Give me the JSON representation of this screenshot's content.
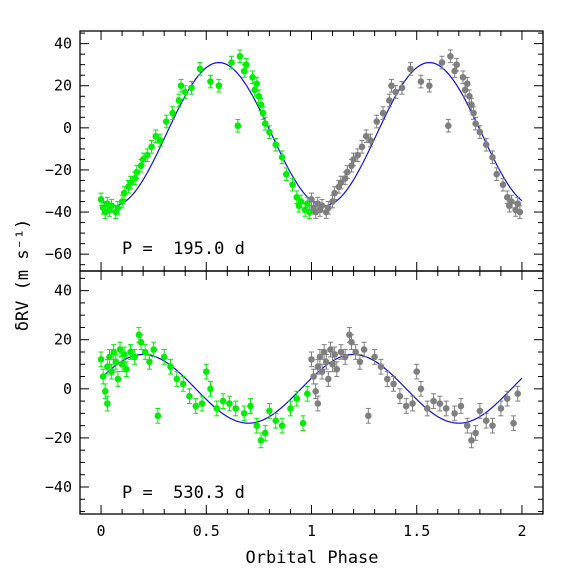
{
  "colors": {
    "first_cycle": "#00ee00",
    "second_cycle": "#7f7f7f",
    "model": "#1010d0",
    "frame": "#000000"
  },
  "chart_data": {
    "type": "scatter",
    "xlabel": "Orbital Phase",
    "ylabel": "δRV (m s⁻¹)",
    "xlim": [
      -0.1,
      2.1
    ],
    "x_ticks": [
      "0",
      "0.5",
      "1",
      "1.5",
      "2"
    ],
    "grid": false,
    "legend": "none",
    "panels": [
      {
        "name": "top",
        "annotation": "P =  195.0 d",
        "ylim": [
          -68,
          46
        ],
        "y_ticks": [
          "40",
          "20",
          "0",
          "−20",
          "−40",
          "−60"
        ],
        "model": {
          "amplitude": 34,
          "offset": -3,
          "peak_phase": 0.56
        },
        "points": [
          [
            0.0,
            -34,
            3
          ],
          [
            0.01,
            -38,
            3
          ],
          [
            0.02,
            -40,
            3
          ],
          [
            0.03,
            -36,
            3
          ],
          [
            0.04,
            -39,
            3
          ],
          [
            0.05,
            -37,
            3
          ],
          [
            0.07,
            -40,
            3
          ],
          [
            0.08,
            -38,
            3
          ],
          [
            0.1,
            -35,
            3
          ],
          [
            0.11,
            -31,
            3
          ],
          [
            0.13,
            -28,
            3
          ],
          [
            0.14,
            -26,
            3
          ],
          [
            0.16,
            -24,
            3
          ],
          [
            0.17,
            -21,
            3
          ],
          [
            0.19,
            -18,
            3
          ],
          [
            0.2,
            -15,
            3
          ],
          [
            0.22,
            -13,
            3
          ],
          [
            0.24,
            -9,
            3
          ],
          [
            0.26,
            -4,
            3
          ],
          [
            0.28,
            -6,
            3
          ],
          [
            0.31,
            3,
            3
          ],
          [
            0.34,
            7,
            3
          ],
          [
            0.37,
            13,
            3
          ],
          [
            0.38,
            20,
            3
          ],
          [
            0.4,
            17,
            3
          ],
          [
            0.43,
            19,
            3
          ],
          [
            0.47,
            28,
            3
          ],
          [
            0.52,
            22,
            3
          ],
          [
            0.56,
            20,
            3
          ],
          [
            0.62,
            31,
            3
          ],
          [
            0.66,
            34,
            3
          ],
          [
            0.68,
            27,
            3
          ],
          [
            0.69,
            30,
            3
          ],
          [
            0.72,
            24,
            3
          ],
          [
            0.73,
            18,
            3
          ],
          [
            0.74,
            21,
            3
          ],
          [
            0.75,
            15,
            3
          ],
          [
            0.76,
            11,
            3
          ],
          [
            0.77,
            7,
            3
          ],
          [
            0.78,
            2,
            3
          ],
          [
            0.65,
            1,
            3
          ],
          [
            0.8,
            -2,
            3
          ],
          [
            0.83,
            -8,
            3
          ],
          [
            0.86,
            -14,
            3
          ],
          [
            0.88,
            -22,
            3
          ],
          [
            0.91,
            -27,
            3
          ],
          [
            0.93,
            -33,
            3
          ],
          [
            0.94,
            -37,
            3
          ],
          [
            0.95,
            -35,
            3
          ],
          [
            0.97,
            -39,
            3
          ],
          [
            0.98,
            -36,
            3
          ],
          [
            0.99,
            -40,
            3
          ]
        ],
        "points_repeat": [
          [
            1.0,
            -34,
            3
          ],
          [
            1.01,
            -38,
            3
          ],
          [
            1.02,
            -40,
            3
          ],
          [
            1.03,
            -36,
            3
          ],
          [
            1.04,
            -39,
            3
          ],
          [
            1.05,
            -37,
            3
          ],
          [
            1.07,
            -40,
            3
          ],
          [
            1.08,
            -38,
            3
          ],
          [
            1.1,
            -35,
            3
          ],
          [
            1.11,
            -31,
            3
          ],
          [
            1.13,
            -28,
            3
          ],
          [
            1.14,
            -26,
            3
          ],
          [
            1.16,
            -24,
            3
          ],
          [
            1.17,
            -21,
            3
          ],
          [
            1.19,
            -18,
            3
          ],
          [
            1.2,
            -15,
            3
          ],
          [
            1.22,
            -13,
            3
          ],
          [
            1.24,
            -9,
            3
          ],
          [
            1.26,
            -4,
            3
          ],
          [
            1.28,
            -6,
            3
          ],
          [
            1.31,
            3,
            3
          ],
          [
            1.34,
            7,
            3
          ],
          [
            1.37,
            13,
            3
          ],
          [
            1.38,
            20,
            3
          ],
          [
            1.4,
            17,
            3
          ],
          [
            1.43,
            19,
            3
          ],
          [
            1.47,
            28,
            3
          ],
          [
            1.52,
            22,
            3
          ],
          [
            1.56,
            20,
            3
          ],
          [
            1.62,
            31,
            3
          ],
          [
            1.66,
            34,
            3
          ],
          [
            1.68,
            27,
            3
          ],
          [
            1.69,
            30,
            3
          ],
          [
            1.72,
            24,
            3
          ],
          [
            1.73,
            18,
            3
          ],
          [
            1.74,
            21,
            3
          ],
          [
            1.75,
            15,
            3
          ],
          [
            1.76,
            11,
            3
          ],
          [
            1.77,
            7,
            3
          ],
          [
            1.78,
            2,
            3
          ],
          [
            1.65,
            1,
            3
          ],
          [
            1.8,
            -2,
            3
          ],
          [
            1.83,
            -8,
            3
          ],
          [
            1.86,
            -14,
            3
          ],
          [
            1.88,
            -22,
            3
          ],
          [
            1.91,
            -27,
            3
          ],
          [
            1.93,
            -33,
            3
          ],
          [
            1.94,
            -37,
            3
          ],
          [
            1.95,
            -35,
            3
          ],
          [
            1.97,
            -39,
            3
          ],
          [
            1.98,
            -36,
            3
          ],
          [
            1.99,
            -40,
            3
          ]
        ]
      },
      {
        "name": "bottom",
        "annotation": "P =  530.3 d",
        "ylim": [
          -51,
          48
        ],
        "y_ticks": [
          "40",
          "20",
          "0",
          "−20",
          "−40"
        ],
        "model": {
          "amplitude": 14,
          "offset": 0,
          "peak_phase": 0.2
        },
        "points": [
          [
            0.0,
            12,
            3
          ],
          [
            0.01,
            5,
            3
          ],
          [
            0.02,
            -1,
            3
          ],
          [
            0.03,
            -6,
            3
          ],
          [
            0.03,
            9,
            3
          ],
          [
            0.04,
            13,
            3
          ],
          [
            0.05,
            7,
            3
          ],
          [
            0.06,
            15,
            3
          ],
          [
            0.07,
            11,
            3
          ],
          [
            0.08,
            4,
            3
          ],
          [
            0.09,
            16,
            3
          ],
          [
            0.1,
            10,
            3
          ],
          [
            0.11,
            14,
            3
          ],
          [
            0.12,
            8,
            3
          ],
          [
            0.14,
            15,
            3
          ],
          [
            0.16,
            13,
            3
          ],
          [
            0.18,
            22,
            3
          ],
          [
            0.19,
            19,
            3
          ],
          [
            0.21,
            15,
            3
          ],
          [
            0.23,
            11,
            3
          ],
          [
            0.25,
            16,
            3
          ],
          [
            0.27,
            -11,
            3
          ],
          [
            0.3,
            13,
            3
          ],
          [
            0.33,
            9,
            3
          ],
          [
            0.36,
            4,
            3
          ],
          [
            0.39,
            2,
            3
          ],
          [
            0.42,
            -3,
            3
          ],
          [
            0.45,
            -7,
            3
          ],
          [
            0.48,
            -6,
            3
          ],
          [
            0.5,
            7,
            3
          ],
          [
            0.52,
            0,
            3
          ],
          [
            0.55,
            -8,
            3
          ],
          [
            0.58,
            -5,
            3
          ],
          [
            0.61,
            -6,
            3
          ],
          [
            0.64,
            -8,
            3
          ],
          [
            0.68,
            -10,
            3
          ],
          [
            0.71,
            -7,
            3
          ],
          [
            0.74,
            -15,
            3
          ],
          [
            0.76,
            -21,
            3
          ],
          [
            0.78,
            -18,
            3
          ],
          [
            0.8,
            -9,
            3
          ],
          [
            0.83,
            -13,
            3
          ],
          [
            0.86,
            -15,
            3
          ],
          [
            0.9,
            -8,
            3
          ],
          [
            0.93,
            -4,
            3
          ],
          [
            0.96,
            -14,
            3
          ],
          [
            0.98,
            -2,
            3
          ]
        ],
        "points_repeat": [
          [
            1.0,
            12,
            3
          ],
          [
            1.01,
            5,
            3
          ],
          [
            1.02,
            -1,
            3
          ],
          [
            1.03,
            -6,
            3
          ],
          [
            1.03,
            9,
            3
          ],
          [
            1.04,
            13,
            3
          ],
          [
            1.05,
            7,
            3
          ],
          [
            1.06,
            15,
            3
          ],
          [
            1.07,
            11,
            3
          ],
          [
            1.08,
            4,
            3
          ],
          [
            1.09,
            16,
            3
          ],
          [
            1.1,
            10,
            3
          ],
          [
            1.11,
            14,
            3
          ],
          [
            1.12,
            8,
            3
          ],
          [
            1.14,
            15,
            3
          ],
          [
            1.16,
            13,
            3
          ],
          [
            1.18,
            22,
            3
          ],
          [
            1.19,
            19,
            3
          ],
          [
            1.21,
            15,
            3
          ],
          [
            1.23,
            11,
            3
          ],
          [
            1.25,
            16,
            3
          ],
          [
            1.27,
            -11,
            3
          ],
          [
            1.3,
            13,
            3
          ],
          [
            1.33,
            9,
            3
          ],
          [
            1.36,
            4,
            3
          ],
          [
            1.39,
            2,
            3
          ],
          [
            1.42,
            -3,
            3
          ],
          [
            1.45,
            -7,
            3
          ],
          [
            1.48,
            -6,
            3
          ],
          [
            1.5,
            7,
            3
          ],
          [
            1.52,
            0,
            3
          ],
          [
            1.55,
            -8,
            3
          ],
          [
            1.58,
            -5,
            3
          ],
          [
            1.61,
            -6,
            3
          ],
          [
            1.64,
            -8,
            3
          ],
          [
            1.68,
            -10,
            3
          ],
          [
            1.71,
            -7,
            3
          ],
          [
            1.74,
            -15,
            3
          ],
          [
            1.76,
            -21,
            3
          ],
          [
            1.78,
            -18,
            3
          ],
          [
            1.8,
            -9,
            3
          ],
          [
            1.83,
            -13,
            3
          ],
          [
            1.86,
            -15,
            3
          ],
          [
            1.9,
            -8,
            3
          ],
          [
            1.93,
            -4,
            3
          ],
          [
            1.96,
            -14,
            3
          ],
          [
            1.98,
            -2,
            3
          ]
        ]
      }
    ]
  }
}
